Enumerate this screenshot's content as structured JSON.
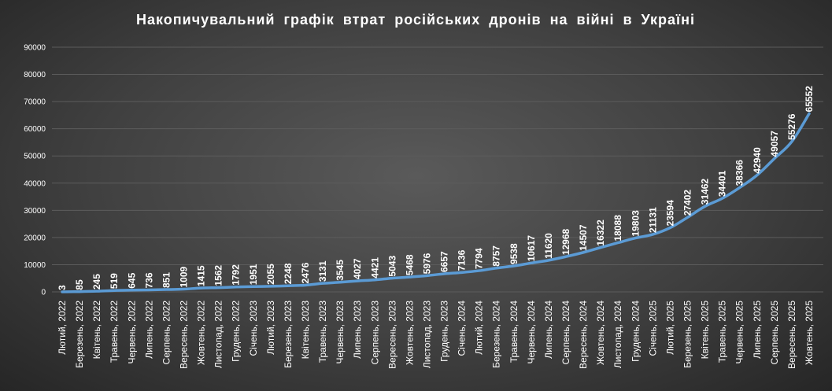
{
  "chart_data": {
    "type": "line",
    "title": "Накопичувальний  графік  втрат  російських  дронів  на  війні  в  Україні",
    "xlabel": "",
    "ylabel": "",
    "ylim": [
      0,
      90000
    ],
    "yticks": [
      0,
      10000,
      20000,
      30000,
      40000,
      50000,
      60000,
      70000,
      80000,
      90000
    ],
    "grid": true,
    "legend": "none",
    "colors": {
      "line": "#5b9bd5",
      "text": "#ffffff",
      "grid": "#5c5c5c"
    },
    "categories": [
      "Лютий, 2022",
      "Березень, 2022",
      "Квітень, 2022",
      "Травень, 2022",
      "Червень, 2022",
      "Липень, 2022",
      "Серпень, 2022",
      "Вересень, 2022",
      "Жовтень, 2022",
      "Листопад, 2022",
      "Грудень, 2022",
      "Січень, 2023",
      "Лютий, 2023",
      "Березень, 2023",
      "Квітень, 2023",
      "Травень, 2023",
      "Червень, 2023",
      "Липень, 2023",
      "Серпень, 2023",
      "Вересень, 2023",
      "Жовтень, 2023",
      "Листопад, 2023",
      "Грудень, 2023",
      "Січень, 2024",
      "Лютий, 2024",
      "Березень, 2024",
      "Травень, 2024",
      "Червень, 2024",
      "Липень, 2024",
      "Серпень, 2024",
      "Вересень, 2024",
      "Жовтень, 2024",
      "Листопад, 2024",
      "Грудень, 2024",
      "Січень, 2025",
      "Лютий, 2025",
      "Березень, 2025",
      "Квітень, 2025",
      "Травень, 2025",
      "Червень, 2025",
      "Липень, 2025",
      "Серпень, 2025",
      "Вересень, 2025",
      "Жовтень, 2025"
    ],
    "series": [
      {
        "values": [
          3,
          85,
          245,
          519,
          645,
          736,
          851,
          1009,
          1415,
          1562,
          1792,
          1951,
          2055,
          2248,
          2476,
          3131,
          3545,
          4027,
          4421,
          5043,
          5468,
          5976,
          6657,
          7136,
          7794,
          8757,
          9538,
          10617,
          11620,
          12968,
          14507,
          16322,
          18088,
          19803,
          21131,
          23594,
          27402,
          31462,
          34401,
          38366,
          42940,
          49057,
          55276,
          65552
        ],
        "labels": [
          "3",
          "85",
          "245",
          "519",
          "645",
          "736",
          "851",
          "1009",
          "1415",
          "1562",
          "1792",
          "1951",
          "2055",
          "2248",
          "2476",
          "3131",
          "3545",
          "4027",
          "4421",
          "5043",
          "5468",
          "5976",
          "6657",
          "7136",
          "7794",
          "8757",
          "9538",
          "10617",
          "11620",
          "12968",
          "14507",
          "16322",
          "18088",
          "19803",
          "21131",
          "23594",
          "27402",
          "31462",
          "34401",
          "38366",
          "42940",
          "49057",
          "55276",
          "65552"
        ]
      }
    ]
  }
}
